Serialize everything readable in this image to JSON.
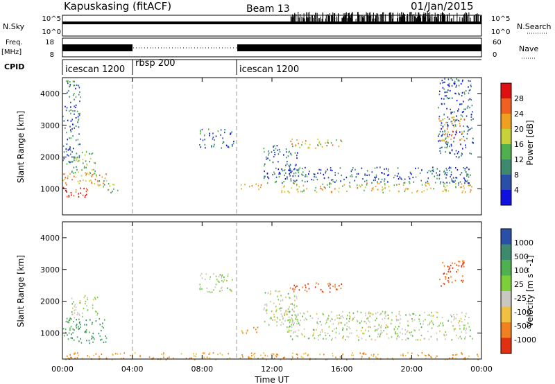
{
  "header": {
    "station": "Kapuskasing (fitACF)",
    "beam": "Beam 13",
    "date": "01/Jan/2015"
  },
  "top_panels": {
    "nsky_label": "N.Sky",
    "nsky_ticks": [
      "10^5",
      "10^0"
    ],
    "nsearch_label": "N.Search",
    "nsearch_ticks": [
      "10^5",
      "10^0"
    ],
    "freq_label": "Freq.",
    "freq_unit": "[MHz]",
    "freq_ticks": [
      "18",
      "8"
    ],
    "nave_label": "Nave",
    "nave_ticks": [
      "60",
      "0"
    ],
    "cpid_label": "CPID",
    "cpid_segments": [
      {
        "name": "icescan 1200",
        "start": 0,
        "end": 4
      },
      {
        "name": "rbsp 200",
        "start": 4,
        "end": 10
      },
      {
        "name": "icescan 1200",
        "start": 10,
        "end": 24
      }
    ]
  },
  "chart_data": [
    {
      "type": "heatmap",
      "parameter": "Power",
      "ylabel": "Slant Range [km]",
      "ylim": [
        180,
        4500
      ],
      "yticks": [
        1000,
        2000,
        3000,
        4000
      ],
      "xlim": [
        0,
        24
      ],
      "colorbar_label": "Power [dB]",
      "colorbar_ticks": [
        "4",
        "8",
        "12",
        "16",
        "20",
        "24",
        "28"
      ],
      "colorbar_range": [
        0,
        30
      ],
      "colors": [
        "#1010e0",
        "#2a4fa8",
        "#3e8a6f",
        "#4fb04f",
        "#c7d23a",
        "#f0a020",
        "#f06020",
        "#e01010"
      ],
      "scatter_regions": [
        {
          "t": [
            0.0,
            1.5
          ],
          "r": [
            700,
            1100
          ],
          "level": 28
        },
        {
          "t": [
            0.0,
            2.5
          ],
          "r": [
            1100,
            1500
          ],
          "level": 20
        },
        {
          "t": [
            0.5,
            2.0
          ],
          "r": [
            1500,
            2200
          ],
          "level": 14
        },
        {
          "t": [
            0.0,
            1.0
          ],
          "r": [
            1800,
            4500
          ],
          "level": 8
        },
        {
          "t": [
            2.0,
            3.2
          ],
          "r": [
            900,
            1300
          ],
          "level": 14
        },
        {
          "t": [
            7.8,
            9.8
          ],
          "r": [
            2300,
            2900
          ],
          "level": 8
        },
        {
          "t": [
            10.2,
            11.5
          ],
          "r": [
            1000,
            1200
          ],
          "level": 20
        },
        {
          "t": [
            11.5,
            13.5
          ],
          "r": [
            1200,
            2400
          ],
          "level": 8
        },
        {
          "t": [
            13.0,
            16.0
          ],
          "r": [
            2300,
            2600
          ],
          "level": 18
        },
        {
          "t": [
            12.5,
            23.5
          ],
          "r": [
            900,
            1200
          ],
          "level": 18
        },
        {
          "t": [
            12.5,
            23.5
          ],
          "r": [
            1200,
            1700
          ],
          "level": 6
        },
        {
          "t": [
            21.5,
            23.5
          ],
          "r": [
            2000,
            4500
          ],
          "level": 6
        },
        {
          "t": [
            21.5,
            23.0
          ],
          "r": [
            2500,
            3300
          ],
          "level": 20
        }
      ]
    },
    {
      "type": "heatmap",
      "parameter": "Velocity",
      "ylabel": "Slant Range [km]",
      "ylim": [
        180,
        4500
      ],
      "yticks": [
        1000,
        2000,
        3000,
        4000
      ],
      "xlim": [
        0,
        24
      ],
      "xticks": [
        "00:00",
        "04:00",
        "08:00",
        "12:00",
        "16:00",
        "20:00",
        "00:00"
      ],
      "xlabel": "Time UT",
      "colorbar_label": "Velocity [m s^-1]",
      "colorbar_ticks": [
        "1000",
        "500",
        "100",
        "25",
        "-25",
        "-100",
        "-500",
        "-1000"
      ],
      "colors": [
        "#2a4fa8",
        "#3e8a6f",
        "#4fb04f",
        "#7ccf3a",
        "#c8c8c0",
        "#f0c040",
        "#f08020",
        "#e03010",
        "#e01010"
      ],
      "scatter_regions": [
        {
          "t": [
            0.0,
            2.5
          ],
          "r": [
            700,
            1500
          ],
          "level": 100
        },
        {
          "t": [
            0.5,
            2.0
          ],
          "r": [
            1500,
            2200
          ],
          "level": 0
        },
        {
          "t": [
            7.8,
            9.8
          ],
          "r": [
            2300,
            2900
          ],
          "level": 0
        },
        {
          "t": [
            10.2,
            11.5
          ],
          "r": [
            1000,
            1200
          ],
          "level": -100
        },
        {
          "t": [
            11.5,
            13.5
          ],
          "r": [
            1200,
            2400
          ],
          "level": 0
        },
        {
          "t": [
            13.0,
            16.0
          ],
          "r": [
            2300,
            2600
          ],
          "level": -500
        },
        {
          "t": [
            12.5,
            23.5
          ],
          "r": [
            800,
            1700
          ],
          "level": 0
        },
        {
          "t": [
            21.5,
            23.0
          ],
          "r": [
            2500,
            3300
          ],
          "level": -500
        },
        {
          "t": [
            0.0,
            24.0
          ],
          "r": [
            180,
            400
          ],
          "level": -100
        }
      ]
    }
  ]
}
